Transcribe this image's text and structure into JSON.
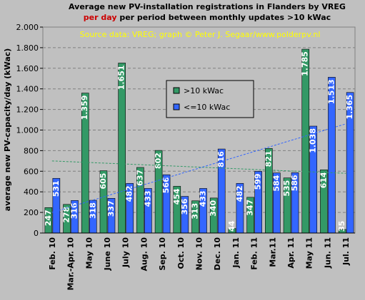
{
  "chart_data": {
    "type": "bar",
    "title": "Average new PV-installation registrations in Flanders by VREG",
    "subtitle_highlight": "per day",
    "subtitle": "per period between monthly updates >10 kWac",
    "source": "Source data: VREG; graph © Peter J. Segaar/www.polderpv.nl",
    "y_label": "average new PV-capacity/day (kWac)",
    "categories": [
      "Feb. 10",
      "Mar.-Apr. 10",
      "May 10",
      "June 10",
      "July 10",
      "Aug. 10",
      "Sep. 10",
      "Oct. 10",
      "Nov. 10",
      "Dec. 10",
      "Jan. 11",
      "Feb. 11",
      "Mar.11",
      "Apr. 11",
      "May 11",
      "Jun. 11",
      "Jul. 11"
    ],
    "series": [
      {
        "name": ">10 kWac",
        "color": "#339966",
        "values": [
          247,
          278,
          1359,
          605,
          1651,
          637,
          802,
          454,
          313,
          340,
          44,
          347,
          821,
          535,
          1785,
          614,
          35
        ],
        "value_labels": [
          "247",
          "278",
          "1.359",
          "605",
          "1.651",
          "637",
          "802",
          "454",
          "313",
          "340",
          "44",
          "347",
          "821",
          "535",
          "1.785",
          "614",
          "35"
        ],
        "trend": [
          700,
          580
        ]
      },
      {
        "name": "<=10 kWac",
        "color": "#3366ff",
        "values": [
          531,
          316,
          318,
          337,
          482,
          433,
          566,
          356,
          433,
          816,
          482,
          599,
          584,
          586,
          1038,
          1513,
          1365
        ],
        "value_labels": [
          "531",
          "316",
          "318",
          "337",
          "482",
          "433",
          "566",
          "356",
          "433",
          "816",
          "482",
          "599",
          "584",
          "586",
          "1.038",
          "1.513",
          "1.365"
        ],
        "trend": [
          200,
          1060
        ]
      }
    ],
    "ylim": [
      0,
      2000
    ],
    "yticks": [
      0,
      200,
      400,
      600,
      800,
      {
        "value": 1000,
        "label": "1.000"
      },
      {
        "value": 1200,
        "label": "1.200"
      },
      {
        "value": 1400,
        "label": "1.400"
      },
      {
        "value": 1600,
        "label": "1.600"
      },
      {
        "value": 1800,
        "label": "1.800"
      },
      {
        "value": 2000,
        "label": "2.000"
      }
    ],
    "grid": true,
    "legend": "top-center"
  }
}
